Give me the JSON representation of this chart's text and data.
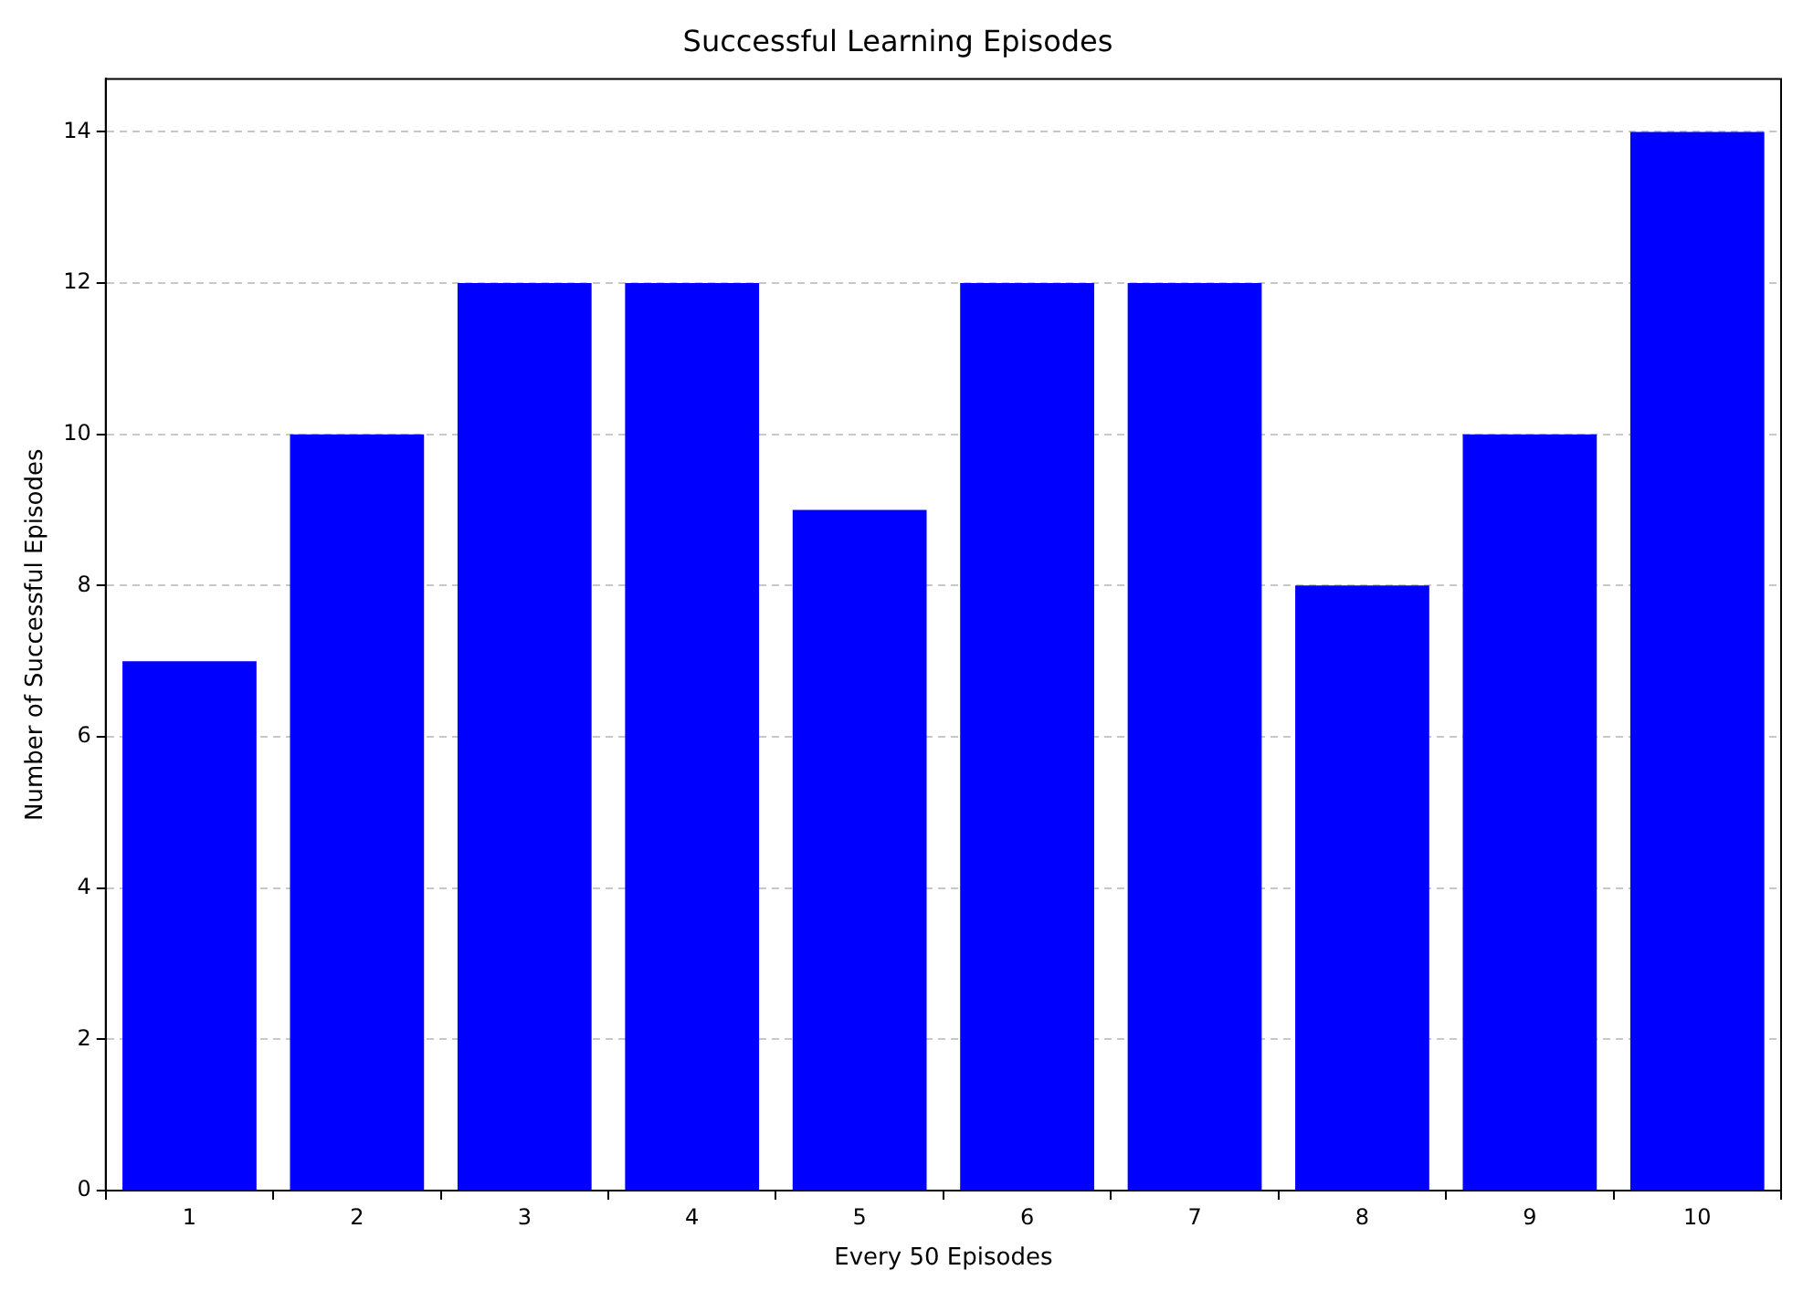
{
  "chart_data": {
    "type": "bar",
    "title": "Successful Learning Episodes",
    "xlabel": "Every 50 Episodes",
    "ylabel": "Number of Successful Episodes",
    "categories": [
      "1",
      "2",
      "3",
      "4",
      "5",
      "6",
      "7",
      "8",
      "9",
      "10"
    ],
    "values": [
      7,
      10,
      12,
      12,
      9,
      12,
      12,
      8,
      10,
      14
    ],
    "color": "#0000ff",
    "ylim": [
      0,
      14.7
    ],
    "yticks": [
      0,
      2,
      4,
      6,
      8,
      10,
      12,
      14
    ],
    "grid": "y"
  }
}
